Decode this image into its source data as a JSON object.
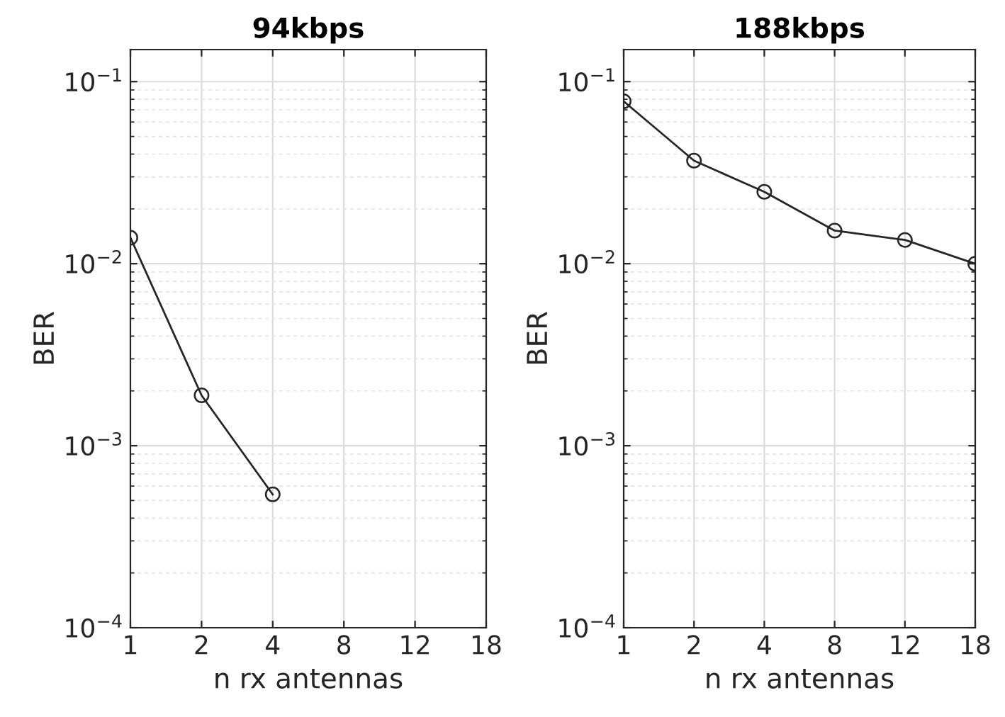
{
  "chart_data": [
    {
      "type": "line",
      "title": "94kbps",
      "xlabel": "n rx antennas",
      "ylabel": "BER",
      "categories": [
        "1",
        "2",
        "4",
        "8",
        "12",
        "18"
      ],
      "log": "y",
      "ylim": [
        0.0001,
        0.15
      ],
      "yticks": [
        {
          "value": 0.0001,
          "label": "10$^{−4}$"
        },
        {
          "value": 0.001,
          "label": "10$^{−3}$"
        },
        {
          "value": 0.01,
          "label": "10$^{−2}$"
        },
        {
          "value": 0.1,
          "label": "10$^{−1}$"
        }
      ],
      "grid": true,
      "marker": "circle",
      "line_style": "solid",
      "series": [
        {
          "color": "#262626",
          "values": [
            0.0139,
            0.00189,
            0.00054,
            null,
            null,
            null
          ]
        }
      ]
    },
    {
      "type": "line",
      "title": "188kbps",
      "xlabel": "n rx antennas",
      "ylabel": "BER",
      "categories": [
        "1",
        "2",
        "4",
        "8",
        "12",
        "18"
      ],
      "log": "y",
      "ylim": [
        0.0001,
        0.15
      ],
      "yticks": [
        {
          "value": 0.0001,
          "label": "10$^{−4}$"
        },
        {
          "value": 0.001,
          "label": "10$^{−3}$"
        },
        {
          "value": 0.01,
          "label": "10$^{−2}$"
        },
        {
          "value": 0.1,
          "label": "10$^{−1}$"
        }
      ],
      "grid": true,
      "marker": "circle",
      "line_style": "solid",
      "series": [
        {
          "color": "#262626",
          "values": [
            0.078,
            0.0368,
            0.0248,
            0.0152,
            0.0135,
            0.01
          ]
        }
      ]
    }
  ]
}
